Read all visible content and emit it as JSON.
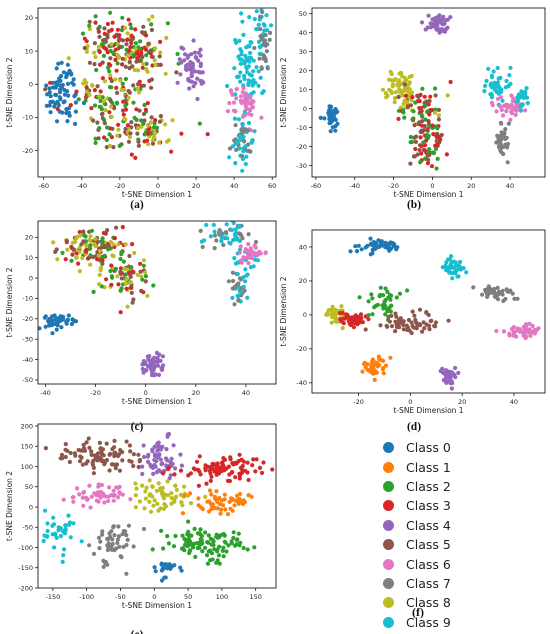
{
  "colors": [
    "#1f77b4",
    "#ff7f0e",
    "#2ca02c",
    "#d62728",
    "#9467bd",
    "#8c564b",
    "#e377c2",
    "#7f7f7f",
    "#bcbd22",
    "#17becf"
  ],
  "legend": {
    "entries": [
      "Class 0",
      "Class 1",
      "Class 2",
      "Class 3",
      "Class 4",
      "Class 5",
      "Class 6",
      "Class 7",
      "Class 8",
      "Class 9"
    ],
    "caption": "(f)"
  },
  "chart_data": [
    {
      "type": "scatter",
      "caption": "(a)",
      "xlabel": "t-SNE Dimension 1",
      "ylabel": "t-SNE Dimension 2",
      "xlim": [
        -63,
        62
      ],
      "ylim": [
        -28,
        23
      ],
      "xticks": [
        -60,
        -40,
        -20,
        0,
        20,
        40,
        60
      ],
      "yticks": [
        -20,
        -10,
        0,
        10,
        20
      ],
      "grid": false,
      "clusters": [
        {
          "cls": 0,
          "cx": -50,
          "cy": -2,
          "sx": 4,
          "sy": 5,
          "n": 70
        },
        {
          "cls": [
            5,
            8,
            3,
            2
          ],
          "cx": -22,
          "cy": 12,
          "sx": 10,
          "sy": 5,
          "n": 140
        },
        {
          "cls": [
            5,
            3,
            8,
            2
          ],
          "cx": -5,
          "cy": 10,
          "sx": 6,
          "sy": 4,
          "n": 60
        },
        {
          "cls": [
            5,
            8,
            3,
            2
          ],
          "cx": -25,
          "cy": -4,
          "sx": 11,
          "sy": 3,
          "n": 90
        },
        {
          "cls": [
            5,
            3,
            8,
            2
          ],
          "cx": -12,
          "cy": -14,
          "sx": 12,
          "sy": 3,
          "n": 110
        },
        {
          "cls": 4,
          "cx": 18,
          "cy": 5,
          "sx": 3,
          "sy": 4,
          "n": 55
        },
        {
          "cls": 9,
          "cx": 47,
          "cy": 5,
          "sx": 4,
          "sy": 8,
          "n": 80
        },
        {
          "cls": 9,
          "cx": 54,
          "cy": 16,
          "sx": 2,
          "sy": 3,
          "n": 20
        },
        {
          "cls": 7,
          "cx": 55,
          "cy": 12,
          "sx": 2,
          "sy": 5,
          "n": 25
        },
        {
          "cls": 6,
          "cx": 45,
          "cy": -6,
          "sx": 4,
          "sy": 3,
          "n": 45
        },
        {
          "cls": [
            9,
            7
          ],
          "cx": 44,
          "cy": -17,
          "sx": 3,
          "sy": 4,
          "n": 50
        }
      ]
    },
    {
      "type": "scatter",
      "caption": "(b)",
      "xlabel": "t-SNE Dimension 1",
      "ylabel": "t-SNE Dimension 2",
      "xlim": [
        -62,
        58
      ],
      "ylim": [
        -36,
        53
      ],
      "xticks": [
        -60,
        -40,
        -20,
        0,
        20,
        40
      ],
      "yticks": [
        -30,
        -20,
        -10,
        0,
        10,
        20,
        30,
        40,
        50
      ],
      "grid": false,
      "clusters": [
        {
          "cls": 0,
          "cx": -52,
          "cy": -4,
          "sx": 2,
          "sy": 3,
          "n": 45
        },
        {
          "cls": 4,
          "cx": 3,
          "cy": 45,
          "sx": 3,
          "sy": 2.5,
          "n": 55
        },
        {
          "cls": 8,
          "cx": -17,
          "cy": 12,
          "sx": 4,
          "sy": 4,
          "n": 55
        },
        {
          "cls": [
            5,
            3,
            8,
            2
          ],
          "cx": -8,
          "cy": 2,
          "sx": 7,
          "sy": 5,
          "n": 60
        },
        {
          "cls": [
            5,
            3,
            2
          ],
          "cx": -2,
          "cy": -15,
          "sx": 4,
          "sy": 8,
          "n": 90
        },
        {
          "cls": 9,
          "cx": 33,
          "cy": 12,
          "sx": 4,
          "sy": 4,
          "n": 45
        },
        {
          "cls": 6,
          "cx": 40,
          "cy": 0,
          "sx": 4,
          "sy": 3,
          "n": 40
        },
        {
          "cls": 7,
          "cx": 36,
          "cy": -18,
          "sx": 2,
          "sy": 4,
          "n": 35
        },
        {
          "cls": 9,
          "cx": 45,
          "cy": 4,
          "sx": 2,
          "sy": 3,
          "n": 20
        }
      ]
    },
    {
      "type": "scatter",
      "caption": "(c)",
      "xlabel": "t-SNE Dimension 1",
      "ylabel": "t-SNE Dimension 2",
      "xlim": [
        -43,
        52
      ],
      "ylim": [
        -52,
        28
      ],
      "xticks": [
        -40,
        -20,
        0,
        20,
        40
      ],
      "yticks": [
        -50,
        -40,
        -30,
        -20,
        -10,
        0,
        10,
        20
      ],
      "grid": false,
      "clusters": [
        {
          "cls": 0,
          "cx": -35,
          "cy": -21,
          "sx": 2.5,
          "sy": 2,
          "n": 50
        },
        {
          "cls": 4,
          "cx": 3,
          "cy": -43,
          "sx": 2.5,
          "sy": 3,
          "n": 50
        },
        {
          "cls": [
            8,
            5,
            3,
            2
          ],
          "cx": -22,
          "cy": 15,
          "sx": 7,
          "sy": 4,
          "n": 120
        },
        {
          "cls": [
            5,
            3,
            2,
            8
          ],
          "cx": -8,
          "cy": 0,
          "sx": 5,
          "sy": 6,
          "n": 80
        },
        {
          "cls": [
            7,
            9
          ],
          "cx": 32,
          "cy": 21,
          "sx": 5,
          "sy": 3,
          "n": 50
        },
        {
          "cls": 9,
          "cx": 41,
          "cy": 10,
          "sx": 3,
          "sy": 3,
          "n": 25
        },
        {
          "cls": 6,
          "cx": 42,
          "cy": 12,
          "sx": 3,
          "sy": 2,
          "n": 35
        },
        {
          "cls": [
            9,
            7
          ],
          "cx": 37,
          "cy": -3,
          "sx": 2,
          "sy": 4,
          "n": 35
        }
      ]
    },
    {
      "type": "scatter",
      "caption": "(d)",
      "xlabel": "t-SNE Dimension 1",
      "ylabel": "t-SNE Dimension 2",
      "xlim": [
        -38,
        52
      ],
      "ylim": [
        -46,
        50
      ],
      "xticks": [
        -20,
        0,
        20,
        40
      ],
      "yticks": [
        -40,
        -20,
        0,
        20,
        40
      ],
      "grid": false,
      "clusters": [
        {
          "cls": 0,
          "cx": -12,
          "cy": 41,
          "sx": 5,
          "sy": 2,
          "n": 55
        },
        {
          "cls": 9,
          "cx": 17,
          "cy": 28,
          "sx": 2,
          "sy": 3,
          "n": 40
        },
        {
          "cls": 8,
          "cx": -29,
          "cy": 0,
          "sx": 2.5,
          "sy": 3,
          "n": 40
        },
        {
          "cls": 3,
          "cx": -22,
          "cy": -3,
          "sx": 3,
          "sy": 2,
          "n": 45
        },
        {
          "cls": 2,
          "cx": -10,
          "cy": 8,
          "sx": 3,
          "sy": 5,
          "n": 35
        },
        {
          "cls": 5,
          "cx": -2,
          "cy": -5,
          "sx": 6,
          "sy": 3,
          "n": 60
        },
        {
          "cls": 7,
          "cx": 33,
          "cy": 13,
          "sx": 4,
          "sy": 2,
          "n": 40
        },
        {
          "cls": 6,
          "cx": 43,
          "cy": -10,
          "sx": 4,
          "sy": 1.5,
          "n": 40
        },
        {
          "cls": 1,
          "cx": -14,
          "cy": -31,
          "sx": 3,
          "sy": 3,
          "n": 40
        },
        {
          "cls": 4,
          "cx": 15,
          "cy": -36,
          "sx": 2,
          "sy": 3,
          "n": 40
        }
      ]
    },
    {
      "type": "scatter",
      "caption": "(e)",
      "xlabel": "t-SNE Dimension 1",
      "ylabel": "t-SNE Dimension 2",
      "xlim": [
        -172,
        180
      ],
      "ylim": [
        -200,
        205
      ],
      "xticks": [
        -150,
        -100,
        -50,
        0,
        50,
        100,
        150
      ],
      "yticks": [
        -200,
        -150,
        -100,
        -50,
        0,
        50,
        100,
        150,
        200
      ],
      "grid": false,
      "clusters": [
        {
          "cls": 5,
          "cx": -80,
          "cy": 125,
          "sx": 28,
          "sy": 22,
          "n": 90
        },
        {
          "cls": 4,
          "cx": 10,
          "cy": 115,
          "sx": 12,
          "sy": 28,
          "n": 60
        },
        {
          "cls": 3,
          "cx": 100,
          "cy": 95,
          "sx": 28,
          "sy": 14,
          "n": 95
        },
        {
          "cls": 6,
          "cx": -80,
          "cy": 30,
          "sx": 22,
          "sy": 12,
          "n": 50
        },
        {
          "cls": 8,
          "cx": 10,
          "cy": 25,
          "sx": 22,
          "sy": 18,
          "n": 55
        },
        {
          "cls": 1,
          "cx": 100,
          "cy": 10,
          "sx": 22,
          "sy": 16,
          "n": 55
        },
        {
          "cls": 9,
          "cx": -138,
          "cy": -60,
          "sx": 12,
          "sy": 22,
          "n": 35
        },
        {
          "cls": 7,
          "cx": -60,
          "cy": -90,
          "sx": 16,
          "sy": 30,
          "n": 50
        },
        {
          "cls": 2,
          "cx": 75,
          "cy": -90,
          "sx": 28,
          "sy": 18,
          "n": 110
        },
        {
          "cls": 0,
          "cx": 15,
          "cy": -150,
          "sx": 10,
          "sy": 10,
          "n": 25
        }
      ]
    }
  ]
}
